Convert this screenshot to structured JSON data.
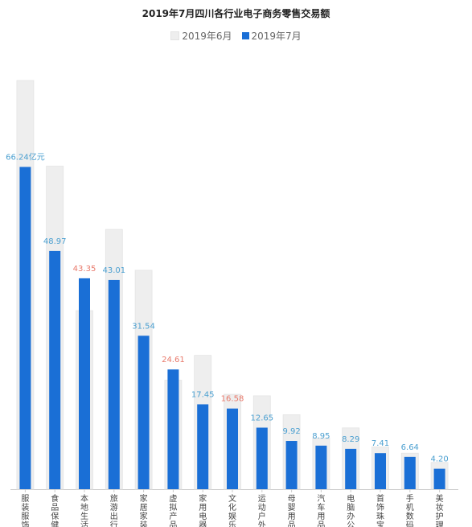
{
  "chart_data": {
    "type": "bar",
    "title": "2019年7月四川各行业电子商务零售交易额",
    "legend": [
      "2019年6月",
      "2019年7月"
    ],
    "categories": [
      "服装服饰",
      "食品保健",
      "本地生活",
      "旅游出行",
      "家居家装",
      "虚拟产品",
      "家用电器",
      "文化娱乐",
      "运动户外",
      "母婴用品",
      "汽车用品",
      "电脑办公",
      "首饰珠宝",
      "手机数码",
      "美妆护理"
    ],
    "series": [
      {
        "name": "2019年6月",
        "values": [
          84.0,
          66.4,
          36.7,
          53.4,
          45.0,
          22.4,
          27.5,
          19.5,
          19.2,
          15.3,
          10.5,
          12.6,
          8.7,
          7.4,
          5.5
        ]
      },
      {
        "name": "2019年7月",
        "values": [
          66.24,
          48.97,
          43.35,
          43.01,
          31.54,
          24.61,
          17.45,
          16.58,
          12.65,
          9.92,
          8.95,
          8.29,
          7.41,
          6.64,
          4.2
        ]
      }
    ],
    "data_labels": [
      "66.24亿元",
      "48.97",
      "43.35",
      "43.01",
      "31.54",
      "24.61",
      "17.45",
      "16.58",
      "12.65",
      "9.92",
      "8.95",
      "8.29",
      "7.41",
      "6.64",
      "4.20"
    ],
    "label_colors": [
      "#4a9fd0",
      "#4a9fd0",
      "#e8796b",
      "#4a9fd0",
      "#4a9fd0",
      "#e8796b",
      "#4a9fd0",
      "#e8796b",
      "#4a9fd0",
      "#4a9fd0",
      "#4a9fd0",
      "#4a9fd0",
      "#4a9fd0",
      "#4a9fd0",
      "#4a9fd0"
    ],
    "colors": {
      "june": "#eeeeee",
      "july": "#1a6fd6"
    },
    "ylim": [
      0,
      86
    ],
    "grid": false
  }
}
